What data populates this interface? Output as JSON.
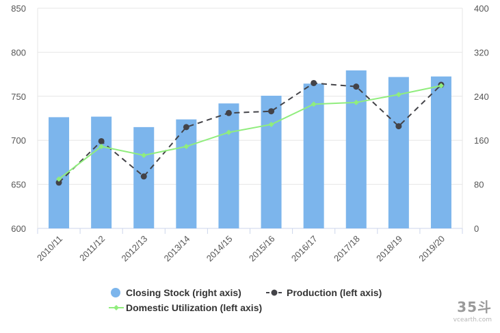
{
  "chart_data": {
    "type": "bar",
    "categories": [
      "2010/11",
      "2011/12",
      "2012/13",
      "2013/14",
      "2014/15",
      "2015/16",
      "2016/17",
      "2017/18",
      "2018/19",
      "2019/20"
    ],
    "left_axis": {
      "ylim": [
        600,
        850
      ],
      "ticks": [
        "600",
        "650",
        "700",
        "750",
        "800",
        "850"
      ]
    },
    "right_axis": {
      "ylim": [
        0,
        400
      ],
      "ticks": [
        "0",
        "80",
        "160",
        "240",
        "320",
        "400"
      ]
    },
    "grid": true,
    "legend_position": "bottom",
    "series": [
      {
        "name": "Closing Stock (right axis)",
        "type": "bar",
        "axis": "right",
        "color": "#7cb5ec",
        "values": [
          202,
          203,
          184,
          198,
          227,
          241,
          263,
          287,
          275,
          276
        ]
      },
      {
        "name": "Production (left axis)",
        "type": "line",
        "axis": "left",
        "color": "#434348",
        "dashed": true,
        "values": [
          652,
          699,
          659,
          715,
          731,
          733,
          765,
          761,
          716,
          763
        ]
      },
      {
        "name": "Domestic Utilization (left axis)",
        "type": "line",
        "axis": "left",
        "color": "#90ed7d",
        "values": [
          656,
          693,
          683,
          693,
          709,
          718,
          741,
          743,
          752,
          762
        ]
      }
    ]
  },
  "watermark": {
    "logo": "35斗",
    "site": "vcearth.com"
  }
}
